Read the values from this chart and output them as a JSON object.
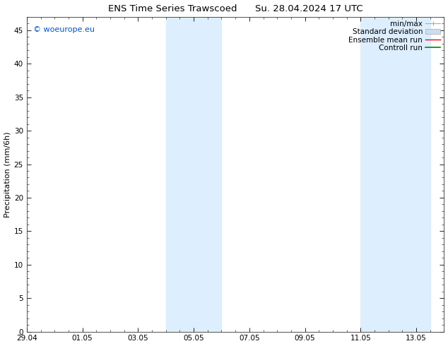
{
  "title": "ENS Time Series Trawscoed      Su. 28.04.2024 17 UTC",
  "ylabel": "Precipitation (mm/6h)",
  "background_color": "#ffffff",
  "plot_bg_color": "#ffffff",
  "xlim": [
    0,
    15
  ],
  "ylim": [
    0,
    47
  ],
  "yticks": [
    0,
    5,
    10,
    15,
    20,
    25,
    30,
    35,
    40,
    45
  ],
  "xtick_labels": [
    "29.04",
    "01.05",
    "03.05",
    "05.05",
    "07.05",
    "09.05",
    "11.05",
    "13.05"
  ],
  "xtick_positions": [
    0,
    2,
    4,
    6,
    8,
    10,
    12,
    14
  ],
  "shaded_regions": [
    {
      "start": 5.0,
      "end": 7.0
    },
    {
      "start": 12.0,
      "end": 14.5
    }
  ],
  "shaded_color": "#ddeeff",
  "copyright_text": "© woeurope.eu",
  "copyright_color": "#0055cc",
  "title_fontsize": 9.5,
  "axis_label_fontsize": 8,
  "tick_fontsize": 7.5,
  "legend_fontsize": 7.5,
  "minmax_color": "#aaaaaa",
  "stddev_color": "#ccddef",
  "mean_color": "#ff0000",
  "control_color": "#008800"
}
